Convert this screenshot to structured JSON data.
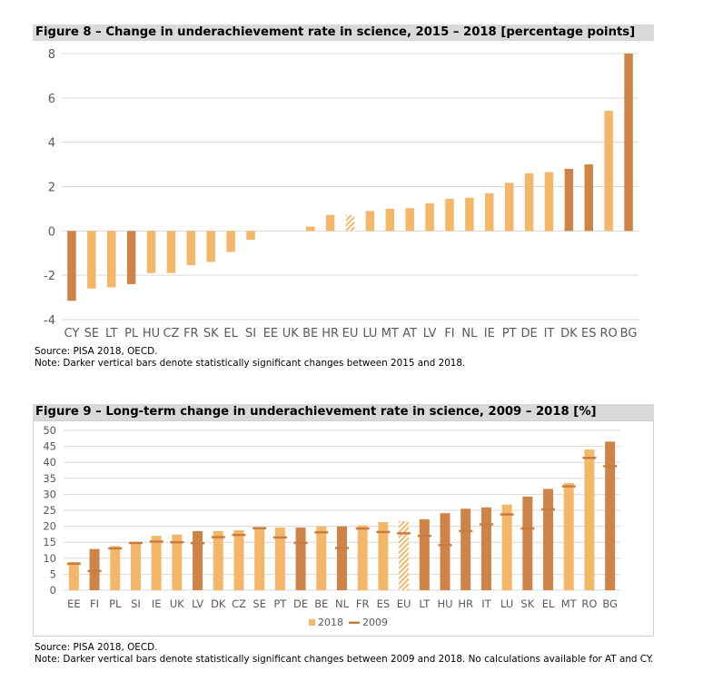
{
  "chart_data": [
    {
      "type": "bar",
      "title": "Figure 8 – Change in underachievement rate in science, 2015 – 2018 [percentage points]",
      "categories": [
        "CY",
        "SE",
        "LT",
        "PL",
        "HU",
        "CZ",
        "FR",
        "SK",
        "EL",
        "SI",
        "EE",
        "UK",
        "BE",
        "HR",
        "EU",
        "LU",
        "MT",
        "AT",
        "LV",
        "FI",
        "NL",
        "IE",
        "PT",
        "DE",
        "IT",
        "DK",
        "ES",
        "RO",
        "BG"
      ],
      "values": [
        -3.15,
        -2.6,
        -2.55,
        -2.4,
        -1.9,
        -1.9,
        -1.55,
        -1.4,
        -0.95,
        -0.4,
        0,
        0,
        0.2,
        0.72,
        0.72,
        0.9,
        1.0,
        1.03,
        1.25,
        1.45,
        1.5,
        1.7,
        2.17,
        2.6,
        2.65,
        2.8,
        3.0,
        5.42,
        8.0
      ],
      "significant": [
        true,
        false,
        false,
        true,
        false,
        false,
        false,
        false,
        false,
        false,
        false,
        false,
        false,
        false,
        false,
        false,
        false,
        false,
        false,
        false,
        false,
        false,
        false,
        false,
        false,
        true,
        true,
        false,
        true
      ],
      "hatched": [
        "EU"
      ],
      "ylim": [
        -4,
        8
      ],
      "yticks": [
        -4,
        -2,
        0,
        2,
        4,
        6,
        8
      ],
      "grid": true,
      "colors": {
        "light": "#f4b76a",
        "dark": "#cf8447"
      },
      "source": "Source: PISA 2018, OECD.",
      "note": "Note: Darker vertical bars denote statistically significant changes between 2015 and 2018."
    },
    {
      "type": "bar",
      "title": "Figure 9 – Long-term change in underachievement rate in science, 2009 – 2018 [%]",
      "categories": [
        "EE",
        "FI",
        "PL",
        "SI",
        "IE",
        "UK",
        "LV",
        "DK",
        "CZ",
        "SE",
        "PT",
        "DE",
        "BE",
        "NL",
        "FR",
        "ES",
        "EU",
        "LT",
        "HU",
        "HR",
        "IT",
        "LU",
        "SK",
        "EL",
        "MT",
        "RO",
        "BG"
      ],
      "series": [
        {
          "name": "2018",
          "values": [
            8.8,
            12.9,
            13.8,
            15.0,
            17.0,
            17.4,
            18.5,
            18.5,
            18.8,
            19.3,
            19.6,
            19.6,
            20.0,
            20.0,
            20.3,
            21.3,
            21.6,
            22.2,
            24.1,
            25.5,
            25.9,
            26.8,
            29.3,
            31.7,
            33.5,
            44.0,
            46.5
          ]
        },
        {
          "name": "2009",
          "values": [
            8.3,
            6.0,
            13.1,
            14.8,
            15.2,
            15.0,
            14.7,
            16.6,
            17.3,
            19.4,
            16.5,
            14.8,
            18.1,
            13.2,
            19.3,
            18.2,
            17.8,
            17.0,
            14.1,
            18.5,
            20.6,
            23.7,
            19.3,
            25.3,
            32.5,
            41.4,
            38.8
          ]
        }
      ],
      "significant": [
        false,
        true,
        false,
        false,
        false,
        false,
        true,
        false,
        false,
        false,
        false,
        true,
        false,
        true,
        false,
        false,
        false,
        true,
        true,
        true,
        true,
        false,
        true,
        true,
        false,
        false,
        true
      ],
      "hatched": [
        "EU"
      ],
      "ylim": [
        0,
        50
      ],
      "yticks": [
        0,
        5,
        10,
        15,
        20,
        25,
        30,
        35,
        40,
        45,
        50
      ],
      "grid": true,
      "legend": {
        "position": "bottom",
        "bar_label": "2018",
        "mark_label": "2009"
      },
      "colors": {
        "light": "#f4b76a",
        "dark": "#cf8447",
        "marker": "#c77c43"
      },
      "source": "Source: PISA 2018, OECD.",
      "note": "Note: Darker vertical bars denote statistically significant changes between 2009 and 2018. No calculations available for AT and CY."
    }
  ]
}
